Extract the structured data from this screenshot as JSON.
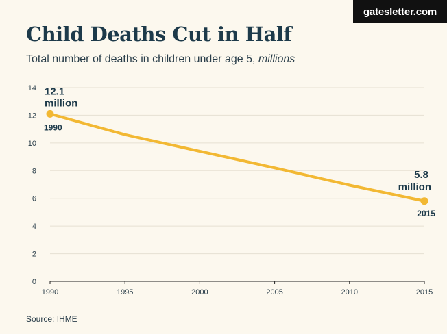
{
  "brand": {
    "label": "gatesletter.com"
  },
  "header": {
    "title": "Child Deaths Cut in Half",
    "subtitle": "Total number of deaths in children under age 5, ",
    "subtitle_unit": "millions"
  },
  "footer": {
    "source": "Source: IHME"
  },
  "colors": {
    "line": "#f2b833",
    "text": "#1d3a4a",
    "grid": "#e6e0d2",
    "background": "#fcf8ee"
  },
  "chart_data": {
    "type": "line",
    "title": "Child Deaths Cut in Half",
    "subtitle": "Total number of deaths in children under age 5, millions",
    "xlabel": "",
    "ylabel": "",
    "x": [
      1990,
      1995,
      2000,
      2005,
      2010,
      2015
    ],
    "series": [
      {
        "values": [
          12.1,
          10.6,
          9.4,
          8.2,
          6.95,
          5.8
        ]
      }
    ],
    "xlim": [
      1990,
      2015
    ],
    "ylim": [
      0,
      14
    ],
    "xticks": [
      1990,
      1995,
      2000,
      2005,
      2010,
      2015
    ],
    "yticks": [
      0,
      2,
      4,
      6,
      8,
      10,
      12,
      14
    ],
    "grid": true,
    "legend": "none",
    "annotations": [
      {
        "value_text": "12.1",
        "unit_text": "million",
        "year_text": "1990"
      },
      {
        "value_text": "5.8",
        "unit_text": "million",
        "year_text": "2015"
      }
    ]
  }
}
